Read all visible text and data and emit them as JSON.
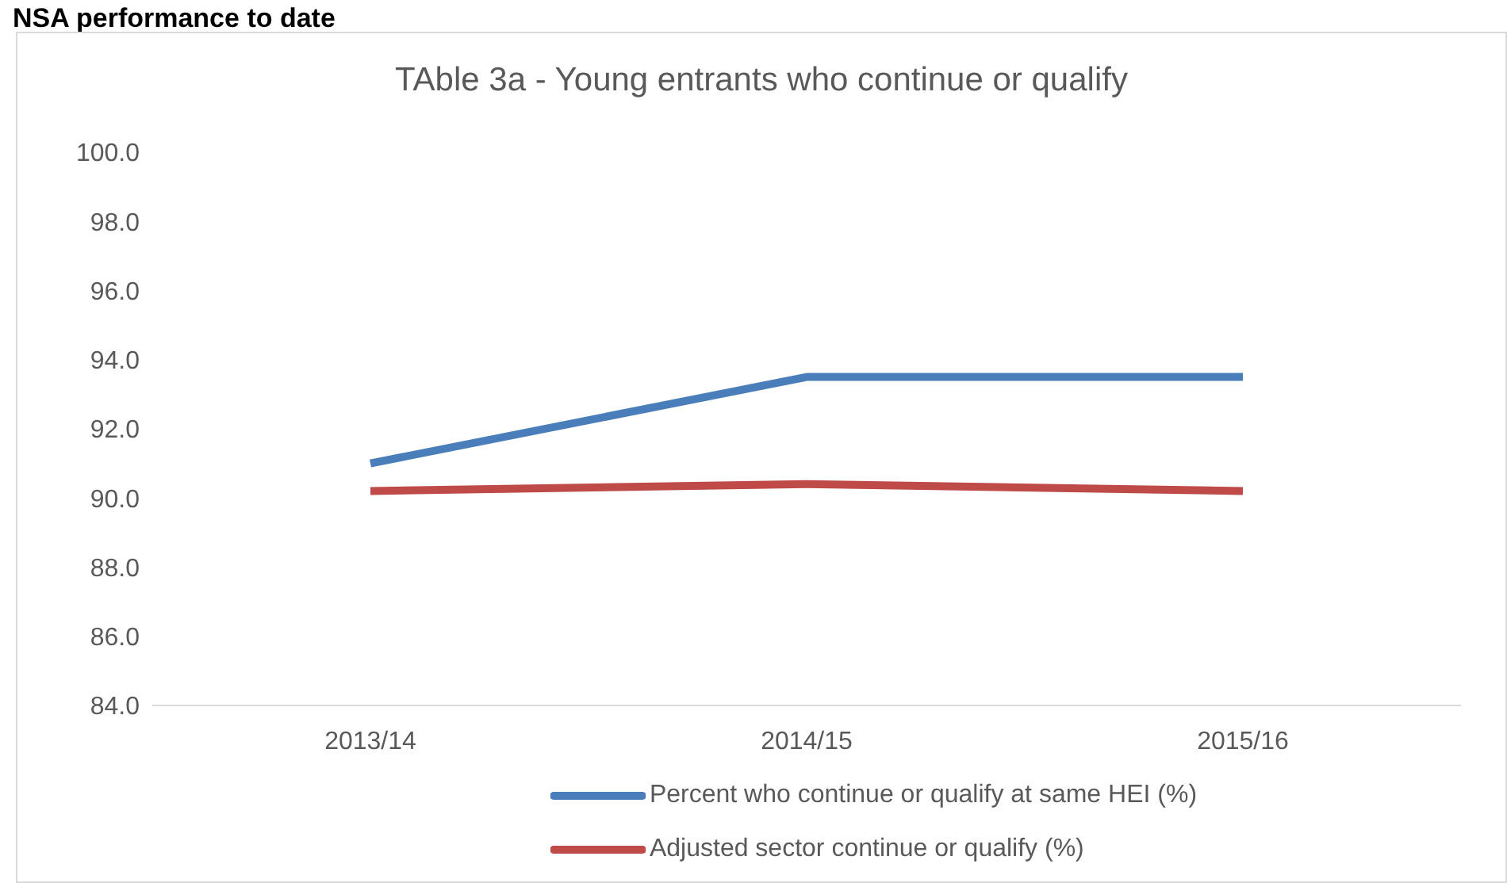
{
  "chart_data": {
    "type": "line",
    "title": "TAble 3a - Young entrants who continue or qualify",
    "annotations": [
      "NSA performance to date"
    ],
    "categories": [
      "2013/14",
      "2014/15",
      "2015/16"
    ],
    "series": [
      {
        "name": "Percent who continue or qualify at same HEI (%)",
        "color": "#4a7ebb",
        "values": [
          91.0,
          93.5,
          93.5
        ]
      },
      {
        "name": "Adjusted sector continue or qualify (%)",
        "color": "#be4b48",
        "values": [
          90.2,
          90.4,
          90.2
        ]
      }
    ],
    "ylim": [
      84,
      100
    ],
    "yticks": [
      {
        "value": 84,
        "label": "84.0"
      },
      {
        "value": 86,
        "label": "86.0"
      },
      {
        "value": 88,
        "label": "88.0"
      },
      {
        "value": 90,
        "label": "90.0"
      },
      {
        "value": 92,
        "label": "92.0"
      },
      {
        "value": 94,
        "label": "94.0"
      },
      {
        "value": 96,
        "label": "96.0"
      },
      {
        "value": 98,
        "label": "98.0"
      },
      {
        "value": 100,
        "label": "100.0"
      }
    ],
    "grid": false,
    "legend": "bottom",
    "marker": "none",
    "line_style": "solid"
  }
}
